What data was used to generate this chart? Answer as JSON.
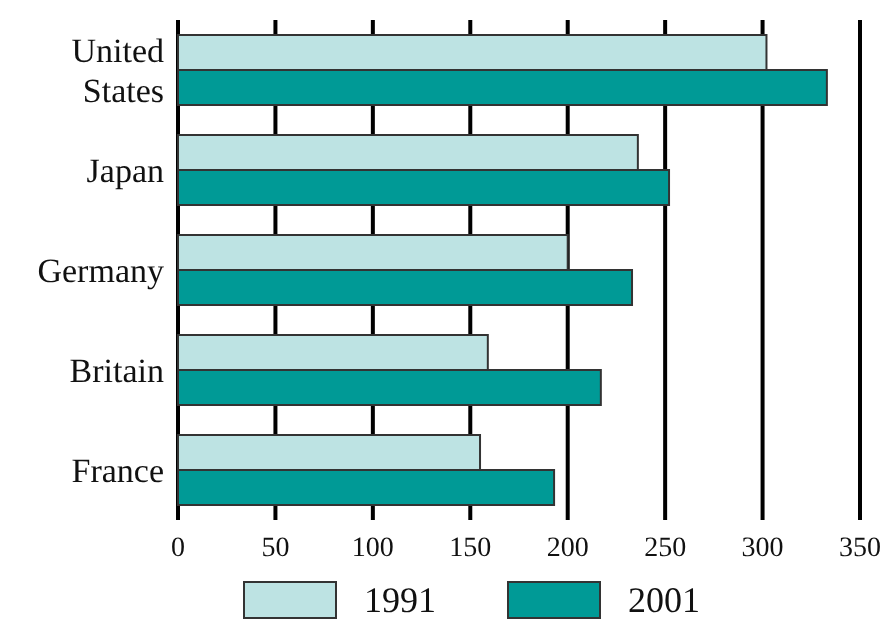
{
  "chart_data": {
    "type": "bar",
    "orientation": "horizontal",
    "categories": [
      "United States",
      "Japan",
      "Germany",
      "Britain",
      "France"
    ],
    "series": [
      {
        "name": "1991",
        "color": "#bde3e3",
        "values": [
          302,
          236,
          200,
          159,
          155
        ]
      },
      {
        "name": "2001",
        "color": "#009a96",
        "values": [
          333,
          252,
          233,
          217,
          193
        ]
      }
    ],
    "xlim": [
      0,
      350
    ],
    "xticks": [
      0,
      50,
      100,
      150,
      200,
      250,
      300,
      350
    ],
    "grid": "x",
    "legend": "bottom"
  }
}
